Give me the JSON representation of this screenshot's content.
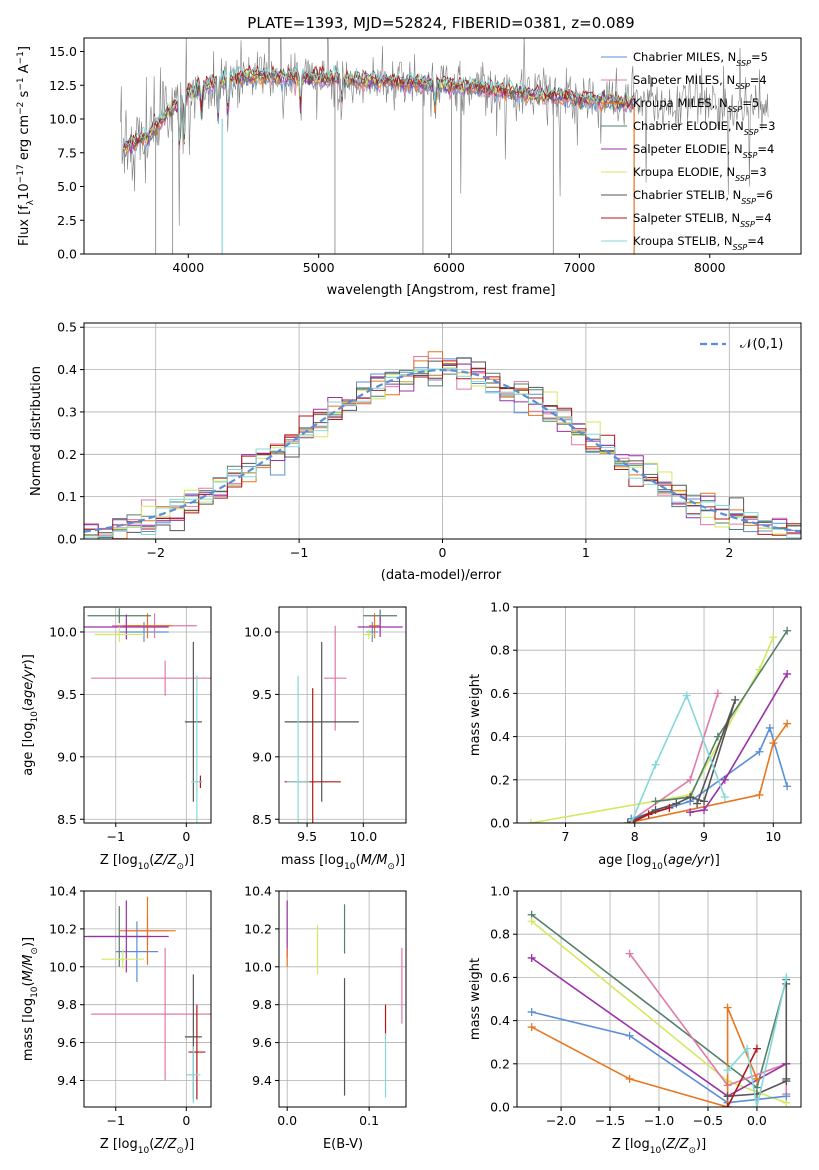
{
  "figure": {
    "title": "PLATE=1393, MJD=52824, FIBERID=0381, z=0.089"
  },
  "colors": {
    "chabrier_miles": "#5a8fd8",
    "salpeter_miles": "#e07aa8",
    "kroupa_miles": "#e8761f",
    "chabrier_elodie": "#55806a",
    "salpeter_elodie": "#9b30a8",
    "kroupa_elodie": "#d4e860",
    "chabrier_stelib": "#555555",
    "salpeter_stelib": "#b01818",
    "kroupa_stelib": "#86d8d8",
    "gauss": "#5a8fd8"
  },
  "chart_data": [
    {
      "id": "spectrum",
      "type": "line",
      "xlabel": "wavelength [Angstrom, rest frame]",
      "ylabel": "Flux [f",
      "xlim": [
        3200,
        8700
      ],
      "ylim": [
        0,
        16
      ],
      "xticks": [
        "4000",
        "5000",
        "6000",
        "7000",
        "8000"
      ],
      "yticks": [
        "0.0",
        "2.5",
        "5.0",
        "7.5",
        "10.0",
        "12.5",
        "15.0"
      ],
      "legend_position": "top-right",
      "series": [
        {
          "name": "Chabrier MILES, N",
          "nssp": "5",
          "color_key": "chabrier_miles"
        },
        {
          "name": "Salpeter MILES, N",
          "nssp": "4",
          "color_key": "salpeter_miles"
        },
        {
          "name": "Kroupa MILES, N",
          "nssp": "5",
          "color_key": "kroupa_miles"
        },
        {
          "name": "Chabrier ELODIE, N",
          "nssp": "3",
          "color_key": "chabrier_elodie"
        },
        {
          "name": "Salpeter ELODIE, N",
          "nssp": "4",
          "color_key": "salpeter_elodie"
        },
        {
          "name": "Kroupa ELODIE, N",
          "nssp": "3",
          "color_key": "kroupa_elodie"
        },
        {
          "name": "Chabrier STELIB, N",
          "nssp": "6",
          "color_key": "chabrier_stelib"
        },
        {
          "name": "Salpeter STELIB, N",
          "nssp": "4",
          "color_key": "salpeter_stelib"
        },
        {
          "name": "Kroupa STELIB, N",
          "nssp": "4",
          "color_key": "kroupa_stelib"
        }
      ],
      "continuum": [
        [
          3500,
          7.8
        ],
        [
          3700,
          8.8
        ],
        [
          3850,
          10.5
        ],
        [
          4000,
          12.0
        ],
        [
          4200,
          12.8
        ],
        [
          4500,
          13.2
        ],
        [
          5000,
          13.0
        ],
        [
          5500,
          12.8
        ],
        [
          6000,
          12.5
        ],
        [
          6500,
          12.0
        ],
        [
          7000,
          11.5
        ],
        [
          7400,
          11.2
        ]
      ]
    },
    {
      "id": "residuals",
      "type": "histogram",
      "xlabel": "(data-model)/error",
      "ylabel": "Normed distribution",
      "xlim": [
        -2.5,
        2.5
      ],
      "ylim": [
        0,
        0.51
      ],
      "xticks": [
        "−2",
        "−1",
        "0",
        "1",
        "2"
      ],
      "yticks": [
        "0.0",
        "0.1",
        "0.2",
        "0.3",
        "0.4",
        "0.5"
      ],
      "bin_width": 0.1,
      "legend": "𝒩(0,1)",
      "gaussian": {
        "mu": 0,
        "sigma": 1
      }
    },
    {
      "id": "age_vs_Z",
      "type": "scatter",
      "xlabel": "Z [log",
      "ylabel": "age  [log",
      "xlim": [
        -1.45,
        0.35
      ],
      "ylim": [
        8.47,
        10.2
      ],
      "xticks": [
        "−1",
        "0"
      ],
      "yticks": [
        "8.5",
        "9.0",
        "9.5",
        "10.0"
      ],
      "points": [
        {
          "s": "chabrier_miles",
          "x": -0.6,
          "xerr": 0.35,
          "y": 10.0,
          "yerr": 0.08
        },
        {
          "s": "salpeter_miles",
          "x": -0.3,
          "xerr": 1.05,
          "y": 9.63,
          "yerr": 0.14
        },
        {
          "s": "salpeter_miles",
          "x": -0.45,
          "xerr": 0.6,
          "y": 10.05,
          "yerr": 0.1
        },
        {
          "s": "kroupa_miles",
          "x": -0.55,
          "xerr": 0.35,
          "y": 10.05,
          "yerr": 0.1
        },
        {
          "s": "chabrier_elodie",
          "x": -0.95,
          "xerr": 0.45,
          "y": 10.13,
          "yerr": 0.06
        },
        {
          "s": "salpeter_elodie",
          "x": -0.85,
          "xerr": 0.6,
          "y": 10.04,
          "yerr": 0.1
        },
        {
          "s": "kroupa_elodie",
          "x": -0.95,
          "xerr": 0.35,
          "y": 9.98,
          "yerr": 0.06
        },
        {
          "s": "chabrier_stelib",
          "x": 0.1,
          "xerr": 0.12,
          "y": 9.28,
          "yerr": 0.64
        },
        {
          "s": "salpeter_stelib",
          "x": 0.2,
          "xerr": 0.02,
          "y": 8.8,
          "yerr": 0.05
        },
        {
          "s": "kroupa_stelib",
          "x": 0.15,
          "xerr": 0.08,
          "y": 8.8,
          "yerr": 0.85
        }
      ]
    },
    {
      "id": "age_vs_mass",
      "type": "scatter",
      "xlabel": "mass [log",
      "xlim": [
        9.25,
        10.38
      ],
      "ylim": [
        8.47,
        10.2
      ],
      "xticks": [
        "9.5",
        "10.0"
      ],
      "yticks": [
        "8.5",
        "9.0",
        "9.5",
        "10.0"
      ],
      "points": [
        {
          "s": "chabrier_miles",
          "x": 10.08,
          "xerr": 0.05,
          "y": 10.0,
          "yerr": 0.08
        },
        {
          "s": "salpeter_miles",
          "x": 9.75,
          "xerr": 0.1,
          "y": 9.63,
          "yerr": 0.42
        },
        {
          "s": "kroupa_miles",
          "x": 10.1,
          "xerr": 0.05,
          "y": 10.05,
          "yerr": 0.1
        },
        {
          "s": "chabrier_elodie",
          "x": 10.15,
          "xerr": 0.15,
          "y": 10.13,
          "yerr": 0.05
        },
        {
          "s": "salpeter_elodie",
          "x": 10.15,
          "xerr": 0.2,
          "y": 10.04,
          "yerr": 0.08
        },
        {
          "s": "kroupa_elodie",
          "x": 10.05,
          "xerr": 0.05,
          "y": 9.98,
          "yerr": 0.04
        },
        {
          "s": "chabrier_stelib",
          "x": 9.63,
          "xerr": 0.33,
          "y": 9.28,
          "yerr": 0.64
        },
        {
          "s": "salpeter_stelib",
          "x": 9.55,
          "xerr": 0.25,
          "y": 8.8,
          "yerr": 0.75
        },
        {
          "s": "kroupa_stelib",
          "x": 9.42,
          "xerr": 0.1,
          "y": 8.8,
          "yerr": 0.85
        }
      ]
    },
    {
      "id": "weight_vs_age",
      "type": "line",
      "xlabel": "age  [log",
      "ylabel": "mass weight",
      "xlim": [
        6.3,
        10.4
      ],
      "ylim": [
        0,
        1.0
      ],
      "xticks": [
        "7",
        "8",
        "9",
        "10"
      ],
      "yticks": [
        "0.0",
        "0.2",
        "0.4",
        "0.6",
        "0.8",
        "1.0"
      ],
      "series": [
        {
          "s": "kroupa_elodie",
          "x": [
            6.5,
            8.8,
            9.8,
            10.0
          ],
          "y": [
            0.0,
            0.13,
            0.71,
            0.86
          ]
        },
        {
          "s": "salpeter_miles",
          "x": [
            7.9,
            8.8,
            9.2
          ],
          "y": [
            0.0,
            0.2,
            0.6
          ]
        },
        {
          "s": "chabrier_miles",
          "x": [
            7.95,
            8.8,
            9.8,
            9.95,
            10.2
          ],
          "y": [
            0.02,
            0.1,
            0.33,
            0.44,
            0.17
          ]
        },
        {
          "s": "kroupa_miles",
          "x": [
            7.9,
            9.8,
            10.0,
            10.2
          ],
          "y": [
            0.0,
            0.13,
            0.37,
            0.46
          ]
        },
        {
          "s": "salpeter_elodie",
          "x": [
            8.8,
            9.0,
            9.3,
            10.2
          ],
          "y": [
            0.05,
            0.06,
            0.2,
            0.69
          ]
        },
        {
          "s": "chabrier_elodie",
          "x": [
            8.3,
            8.8,
            9.2,
            10.2
          ],
          "y": [
            0.1,
            0.12,
            0.4,
            0.89
          ]
        },
        {
          "s": "chabrier_stelib",
          "x": [
            7.9,
            8.3,
            8.6,
            8.8,
            9.0,
            9.45,
            8.9
          ],
          "y": [
            0.0,
            0.06,
            0.09,
            0.12,
            0.1,
            0.57,
            0.09
          ]
        },
        {
          "s": "salpeter_stelib",
          "x": [
            7.95,
            8.2,
            8.5
          ],
          "y": [
            0.0,
            0.04,
            0.07
          ]
        },
        {
          "s": "kroupa_stelib",
          "x": [
            7.95,
            8.3,
            8.75,
            9.3
          ],
          "y": [
            0.0,
            0.27,
            0.59,
            0.12
          ]
        }
      ]
    },
    {
      "id": "mass_vs_Z",
      "type": "scatter",
      "xlabel": "Z [log",
      "ylabel": "mass [log",
      "xlim": [
        -1.45,
        0.35
      ],
      "ylim": [
        9.26,
        10.4
      ],
      "xticks": [
        "−1",
        "0"
      ],
      "yticks": [
        "9.4",
        "9.6",
        "9.8",
        "10.0",
        "10.2",
        "10.4"
      ],
      "points": [
        {
          "s": "chabrier_miles",
          "x": -0.7,
          "xerr": 0.3,
          "y": 10.08,
          "yerr": 0.16
        },
        {
          "s": "salpeter_miles",
          "x": -0.3,
          "xerr": 1.05,
          "y": 9.75,
          "yerr": 0.35
        },
        {
          "s": "salpeter_miles",
          "x": -0.55,
          "xerr": 0.3,
          "y": 10.19,
          "yerr": 0.08
        },
        {
          "s": "kroupa_miles",
          "x": -0.55,
          "xerr": 0.4,
          "y": 10.19,
          "yerr": 0.18
        },
        {
          "s": "chabrier_elodie",
          "x": -0.95,
          "xerr": 0.45,
          "y": 10.16,
          "yerr": 0.16
        },
        {
          "s": "salpeter_elodie",
          "x": -0.85,
          "xerr": 0.6,
          "y": 10.16,
          "yerr": 0.19
        },
        {
          "s": "kroupa_elodie",
          "x": -0.9,
          "xerr": 0.3,
          "y": 10.04,
          "yerr": 0.05
        },
        {
          "s": "chabrier_stelib",
          "x": 0.1,
          "xerr": 0.12,
          "y": 9.63,
          "yerr": 0.33
        },
        {
          "s": "salpeter_stelib",
          "x": 0.15,
          "xerr": 0.12,
          "y": 9.55,
          "yerr": 0.25
        },
        {
          "s": "kroupa_stelib",
          "x": 0.1,
          "xerr": 0.1,
          "y": 9.43,
          "yerr": 0.15
        }
      ]
    },
    {
      "id": "mass_vs_ebv",
      "type": "scatter",
      "xlabel": "E(B-V)",
      "xlim": [
        -0.01,
        0.145
      ],
      "ylim": [
        9.26,
        10.4
      ],
      "xticks": [
        "0.0",
        "0.1"
      ],
      "yticks": [
        "9.4",
        "9.6",
        "9.8",
        "10.0",
        "10.2",
        "10.4"
      ],
      "points": [
        {
          "s": "salpeter_elodie",
          "x": 0.0,
          "y": 10.2,
          "yerr": 0.15
        },
        {
          "s": "kroupa_miles",
          "x": 0.0,
          "y": 10.05,
          "yerr": 0.05
        },
        {
          "s": "kroupa_elodie",
          "x": 0.037,
          "y": 10.09,
          "yerr": 0.13
        },
        {
          "s": "chabrier_elodie",
          "x": 0.07,
          "y": 10.2,
          "yerr": 0.13
        },
        {
          "s": "chabrier_stelib",
          "x": 0.07,
          "y": 9.63,
          "yerr": 0.31
        },
        {
          "s": "salpeter_stelib",
          "x": 0.12,
          "y": 9.72,
          "yerr": 0.08
        },
        {
          "s": "kroupa_stelib",
          "x": 0.12,
          "y": 9.48,
          "yerr": 0.17
        },
        {
          "s": "salpeter_miles",
          "x": 0.14,
          "y": 9.9,
          "yerr": 0.2
        }
      ]
    },
    {
      "id": "weight_vs_Z",
      "type": "line",
      "xlabel": "Z [log",
      "ylabel": "mass weight",
      "xlim": [
        -2.45,
        0.45
      ],
      "ylim": [
        0,
        1.0
      ],
      "xticks": [
        "−2.0",
        "−1.5",
        "−1.0",
        "−0.5",
        "0.0"
      ],
      "yticks": [
        "0.0",
        "0.2",
        "0.4",
        "0.6",
        "0.8",
        "1.0"
      ],
      "series": [
        {
          "s": "chabrier_elodie",
          "x": [
            -2.3,
            0.0,
            0.3
          ],
          "y": [
            0.89,
            0.09,
            0.59
          ]
        },
        {
          "s": "kroupa_elodie",
          "x": [
            -2.3,
            -0.3,
            0.3
          ],
          "y": [
            0.86,
            0.12,
            0.02
          ]
        },
        {
          "s": "salpeter_miles",
          "x": [
            -1.3,
            -0.3,
            0.3,
            0.3
          ],
          "y": [
            0.71,
            0.1,
            0.2,
            0.06
          ]
        },
        {
          "s": "salpeter_elodie",
          "x": [
            -2.3,
            -0.3,
            0.3
          ],
          "y": [
            0.69,
            0.05,
            0.2
          ]
        },
        {
          "s": "chabrier_miles",
          "x": [
            -2.3,
            -1.3,
            -0.3,
            0.3
          ],
          "y": [
            0.44,
            0.33,
            0.02,
            0.05
          ]
        },
        {
          "s": "kroupa_miles",
          "x": [
            -2.3,
            -1.3,
            -0.3,
            -0.3,
            0.0
          ],
          "y": [
            0.37,
            0.13,
            0.0,
            0.46,
            0.13
          ]
        },
        {
          "s": "chabrier_stelib",
          "x": [
            -0.3,
            0.0,
            0.3,
            0.3,
            0.3
          ],
          "y": [
            0.05,
            0.06,
            0.12,
            0.57,
            0.13
          ]
        },
        {
          "s": "salpeter_stelib",
          "x": [
            -0.3,
            0.0
          ],
          "y": [
            0.0,
            0.27
          ]
        },
        {
          "s": "kroupa_stelib",
          "x": [
            -0.3,
            -0.1,
            0.0,
            0.3
          ],
          "y": [
            0.17,
            0.27,
            0.0,
            0.6
          ]
        }
      ]
    }
  ]
}
